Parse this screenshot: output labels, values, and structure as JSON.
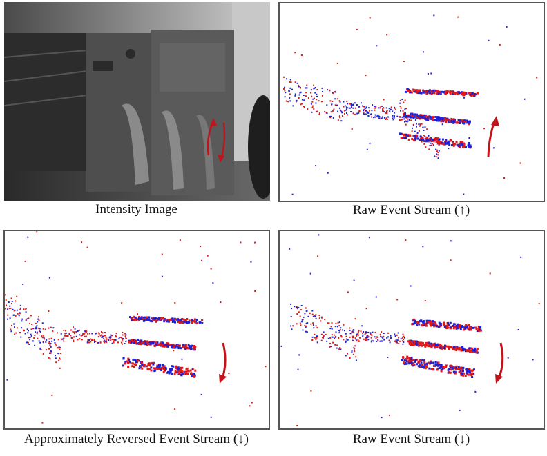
{
  "figure": {
    "panels": [
      {
        "caption": "Intensity Image",
        "kind": "grayscale camera frame of office equipment",
        "arrow": "up-and-down"
      },
      {
        "caption": "Raw Event Stream (↑)",
        "kind": "event frame",
        "arrow": "up"
      },
      {
        "caption": "Approximately Reversed Event Stream (↓)",
        "kind": "event frame",
        "arrow": "down"
      },
      {
        "caption": "Raw Event Stream (↓)",
        "kind": "event frame",
        "arrow": "down"
      }
    ]
  },
  "colors": {
    "positive_event": "#e01818",
    "negative_event": "#1c22d8",
    "motion_arrow": "#c0141a",
    "panel_border": "#555555"
  }
}
